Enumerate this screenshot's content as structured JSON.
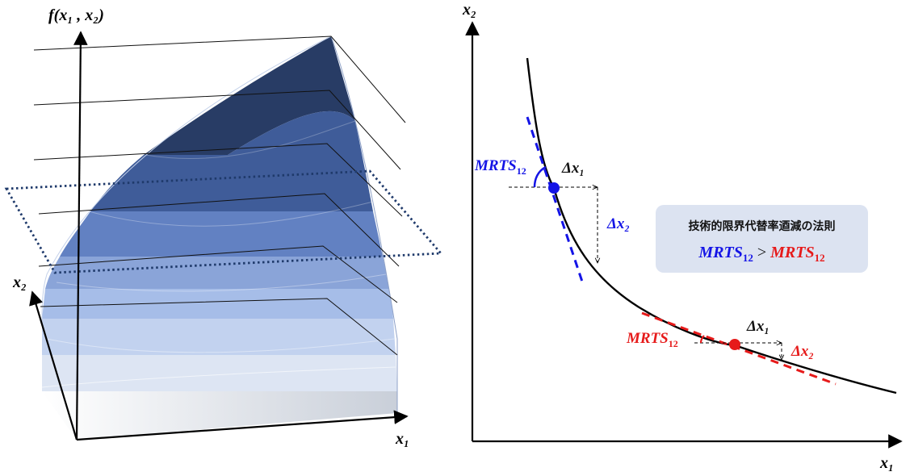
{
  "surface_panel": {
    "z_axis_label": "f(x₁ , x₂)",
    "x_axis_label": "x₁",
    "y_axis_label": "x₂",
    "band_colors": [
      "#f4f6fa",
      "#dde5f3",
      "#c2d2ef",
      "#a6bde8",
      "#8aa4d8",
      "#6281c2",
      "#3f5c99",
      "#283c65"
    ],
    "plane_color": "#1f3a6b"
  },
  "isoquant_panel": {
    "x_axis_label": "x₁",
    "y_axis_label": "x₂",
    "point_a": {
      "color": "#1414e6",
      "mrts_label": "MRTS",
      "mrts_sub": "12",
      "dx_label": "Δx₁",
      "dy_label": "Δx₂"
    },
    "point_b": {
      "color": "#e61a1a",
      "mrts_label": "MRTS",
      "mrts_sub": "12",
      "dx_label": "Δx₁",
      "dy_label": "Δx₂"
    },
    "callout": {
      "title": "技術的限界代替率逎減の法則",
      "left_term": "MRTS",
      "left_sub": "12",
      "operator": ">",
      "right_term": "MRTS",
      "right_sub": "12"
    }
  }
}
